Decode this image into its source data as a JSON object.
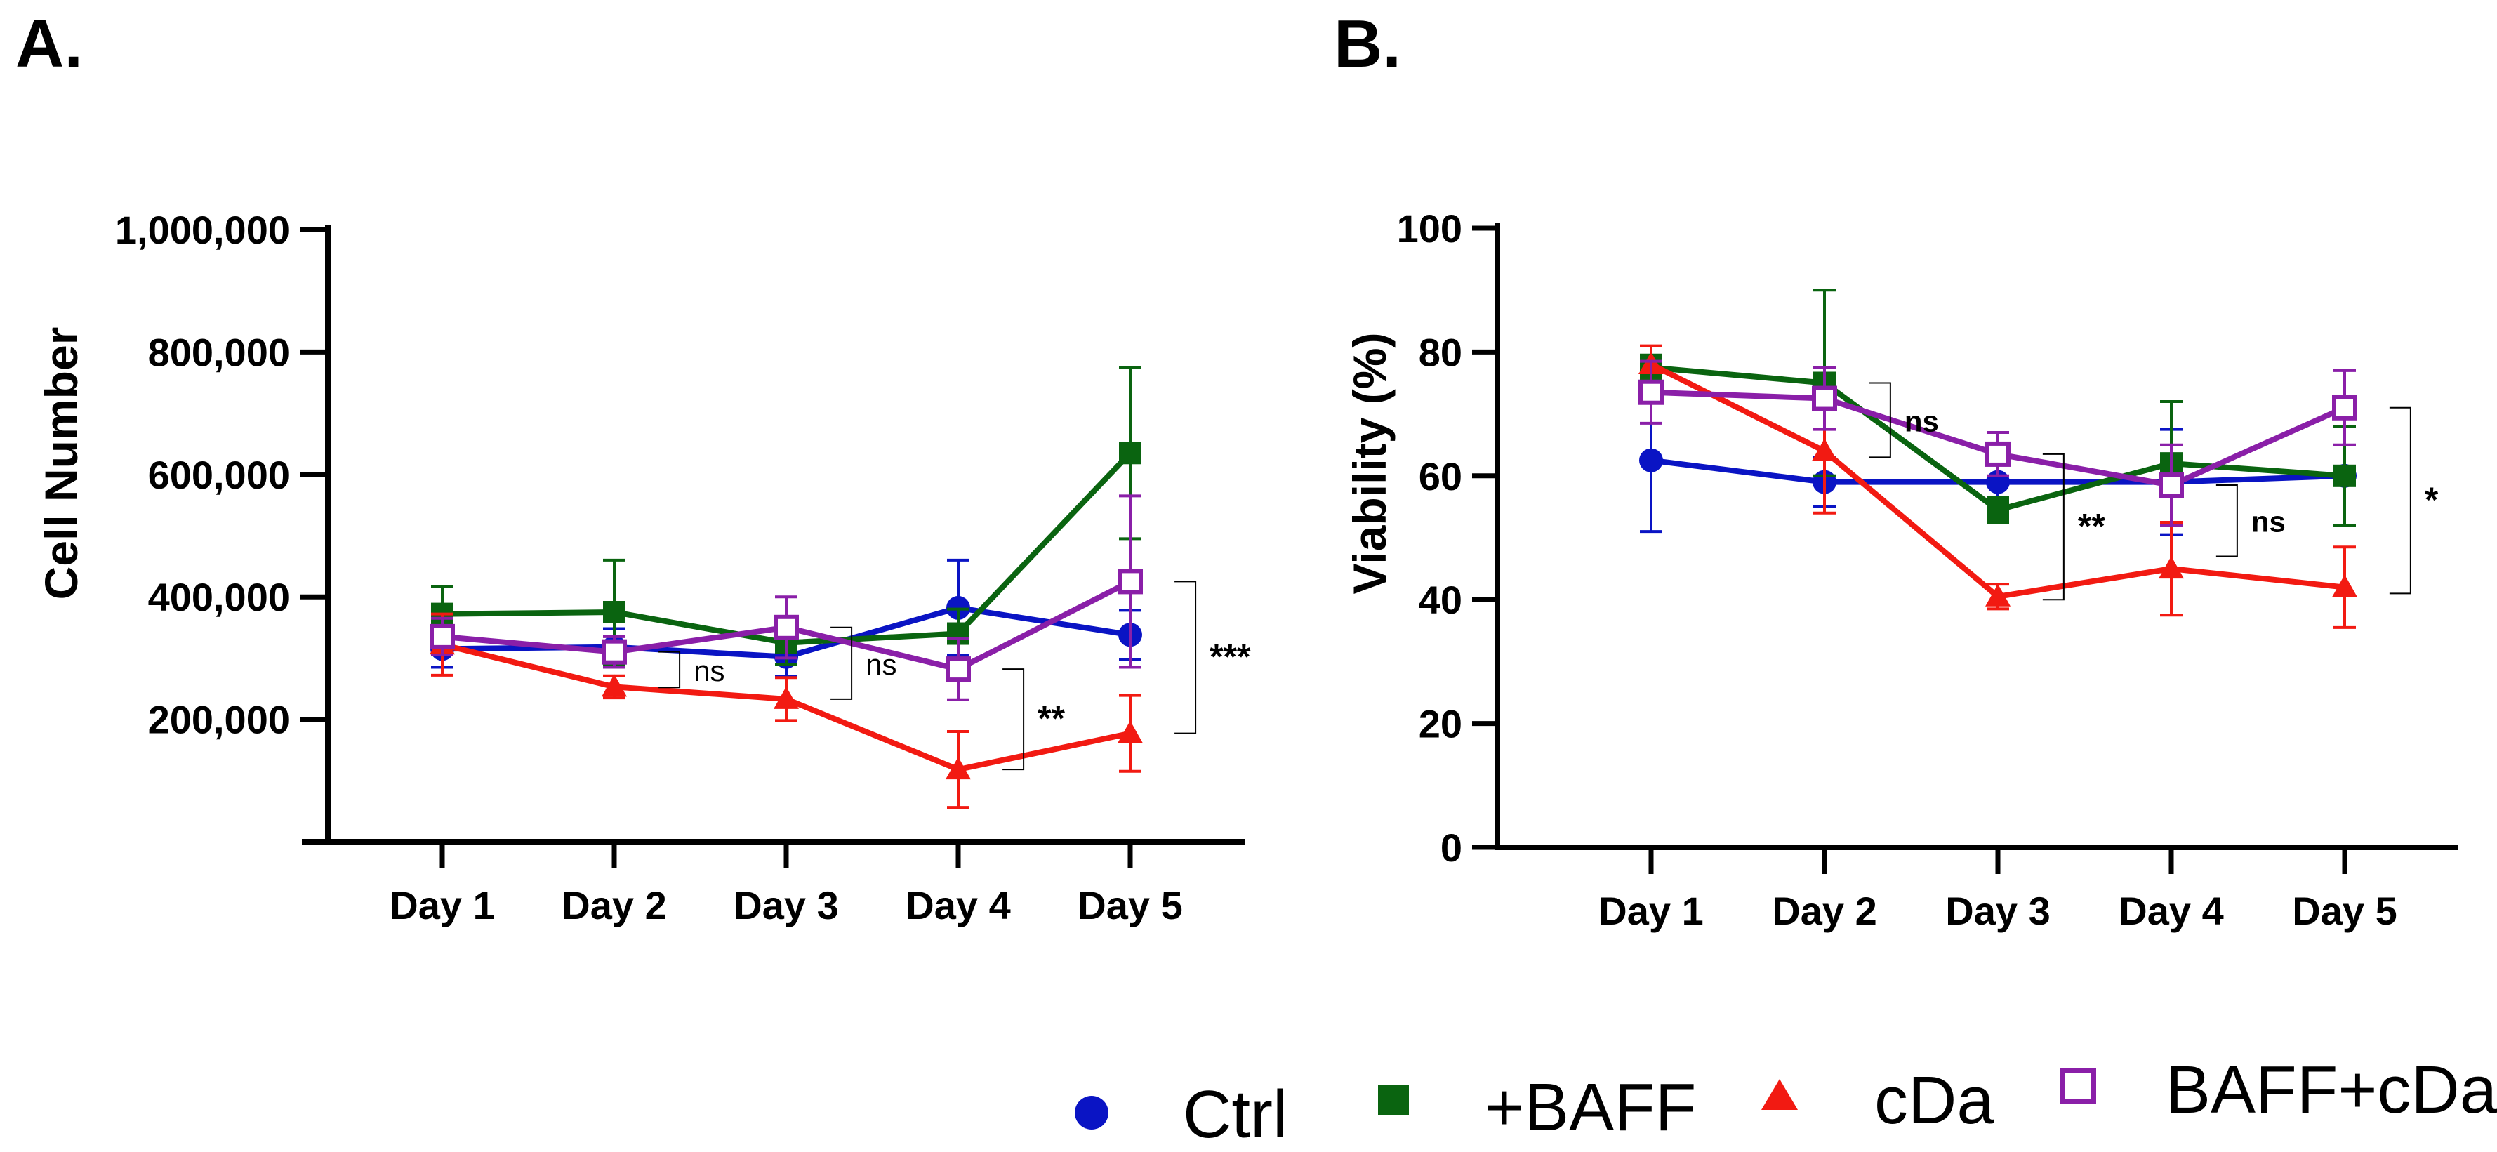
{
  "panels": {
    "a": {
      "label": "A."
    },
    "b": {
      "label": "B."
    }
  },
  "legend": [
    {
      "name": "Ctrl",
      "color": "#0a14c4",
      "marker": "circle"
    },
    {
      "name": "+BAFF",
      "color": "#0a6410",
      "marker": "square"
    },
    {
      "name": "cDa",
      "color": "#f21a12",
      "marker": "triangle"
    },
    {
      "name": "BAFF+cDa",
      "color": "#8a1fa8",
      "marker": "open-square"
    }
  ],
  "chart_data": [
    {
      "type": "line",
      "title": "",
      "xlabel": "",
      "ylabel": "Cell Number",
      "categories": [
        "Day 1",
        "Day 2",
        "Day 3",
        "Day 4",
        "Day 5"
      ],
      "ylim": [
        0,
        1000000
      ],
      "yticks": [
        200000,
        400000,
        600000,
        800000,
        1000000
      ],
      "ytick_labels": [
        "200,000",
        "400,000",
        "600,000",
        "800,000",
        "1,000,000"
      ],
      "series": [
        {
          "name": "Ctrl",
          "values": [
            315000,
            318000,
            302000,
            382000,
            338000
          ],
          "errors": [
            30000,
            30000,
            32000,
            78000,
            40000
          ]
        },
        {
          "name": "+BAFF",
          "values": [
            372000,
            375000,
            325000,
            340000,
            635000
          ],
          "errors": [
            45000,
            85000,
            35000,
            40000,
            140000
          ]
        },
        {
          "name": "cDa",
          "values": [
            322000,
            253000,
            233000,
            118000,
            177000
          ],
          "errors": [
            50000,
            18000,
            35000,
            62000,
            62000
          ]
        },
        {
          "name": "BAFF+cDa",
          "values": [
            335000,
            310000,
            350000,
            282000,
            425000
          ],
          "errors": [
            30000,
            25000,
            50000,
            50000,
            140000
          ]
        }
      ],
      "significance": [
        {
          "between": "Day 2",
          "label": "ns",
          "ylow": 252000,
          "yhigh": 310000,
          "style": "normal"
        },
        {
          "between": "Day 3",
          "label": "ns",
          "ylow": 233000,
          "yhigh": 350000,
          "style": "normal"
        },
        {
          "between": "Day 4",
          "label": "**",
          "ylow": 118000,
          "yhigh": 282000,
          "style": "star"
        },
        {
          "between": "Day 5",
          "label": "***",
          "ylow": 177000,
          "yhigh": 425000,
          "style": "star"
        }
      ]
    },
    {
      "type": "line",
      "title": "",
      "xlabel": "",
      "ylabel": "Viability (%)",
      "categories": [
        "Day 1",
        "Day 2",
        "Day 3",
        "Day 4",
        "Day 5"
      ],
      "ylim": [
        0,
        100
      ],
      "yticks": [
        0,
        20,
        40,
        60,
        80,
        100
      ],
      "ytick_labels": [
        "0",
        "20",
        "40",
        "60",
        "80",
        "100"
      ],
      "series": [
        {
          "name": "Ctrl",
          "values": [
            62.5,
            59,
            59,
            59,
            60
          ],
          "errors": [
            11.5,
            4,
            3,
            8.5,
            8
          ]
        },
        {
          "name": "+BAFF",
          "values": [
            77.5,
            75,
            54.5,
            62,
            60
          ],
          "errors": [
            2,
            15,
            2,
            10,
            8
          ]
        },
        {
          "name": "cDa",
          "values": [
            78,
            64,
            40.5,
            45,
            42
          ],
          "errors": [
            3,
            10,
            2,
            7.5,
            6.5
          ]
        },
        {
          "name": "BAFF+cDa",
          "values": [
            73.5,
            72.5,
            63.5,
            58.5,
            71
          ],
          "errors": [
            5,
            5,
            3.5,
            6.5,
            6
          ]
        }
      ],
      "significance": [
        {
          "between": "Day 2",
          "label": "ns",
          "ylow": 63,
          "yhigh": 75,
          "style": "bold"
        },
        {
          "between": "Day 3",
          "label": "**",
          "ylow": 40,
          "yhigh": 63.5,
          "style": "star"
        },
        {
          "between": "Day 4",
          "label": "ns",
          "ylow": 47,
          "yhigh": 58.5,
          "style": "bold"
        },
        {
          "between": "Day 5",
          "label": "*",
          "ylow": 41,
          "yhigh": 71,
          "style": "star"
        }
      ]
    }
  ]
}
